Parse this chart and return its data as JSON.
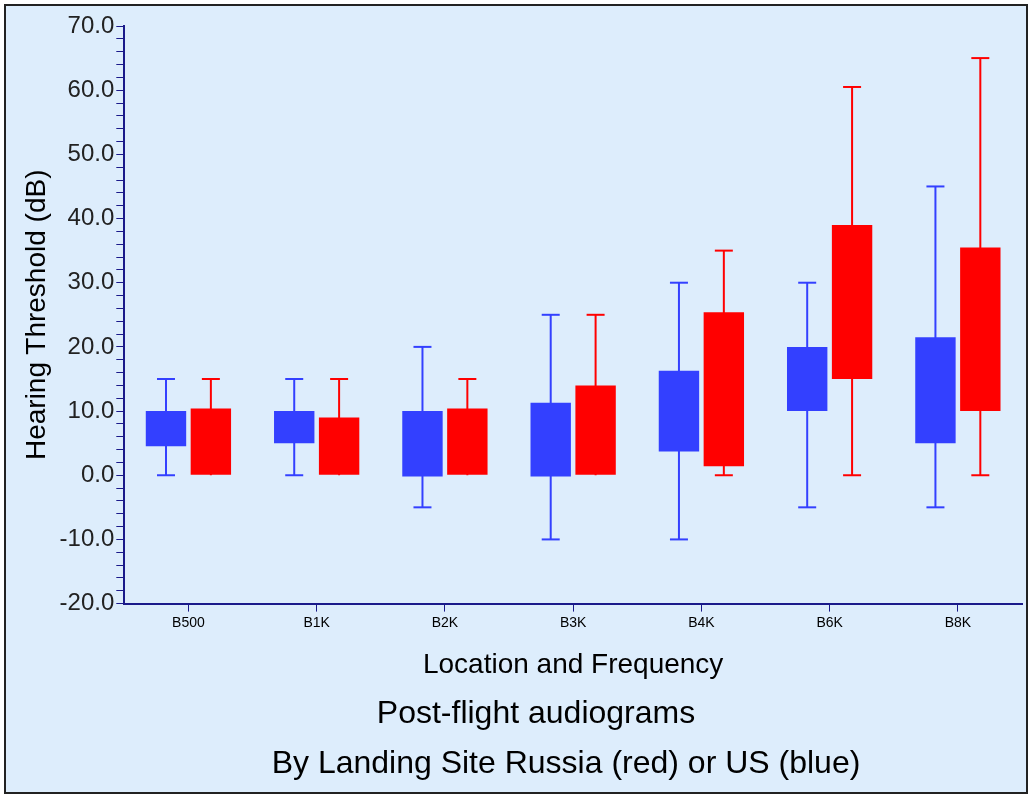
{
  "chart_data": {
    "type": "bar",
    "title": "Post-flight audiograms",
    "subtitle": "By Landing Site Russia (red) or US (blue)",
    "xlabel": "Location and Frequency",
    "ylabel": "Hearing Threshold (dB)",
    "categories": [
      "B500",
      "B1K",
      "B2K",
      "B3K",
      "B4K",
      "B6K",
      "B8K"
    ],
    "series": [
      {
        "color": "#3340ff",
        "base": [
          4.5,
          5,
          -0.2,
          -0.2,
          3.7,
          10,
          5
        ],
        "values": [
          5.5,
          5,
          10.2,
          11.5,
          12.6,
          10,
          16.5
        ],
        "errors": [
          [
            0,
            15
          ],
          [
            0,
            15
          ],
          [
            -5,
            20
          ],
          [
            -10,
            25
          ],
          [
            -10,
            30
          ],
          [
            -5,
            30
          ],
          [
            -5,
            45
          ]
        ]
      },
      {
        "color": "#ff0000",
        "base": [
          0,
          0,
          0,
          0,
          1.4,
          15,
          10
        ],
        "values": [
          10.4,
          9,
          10.4,
          14,
          24,
          24,
          25.5
        ],
        "errors": [
          [
            0,
            15
          ],
          [
            0,
            15
          ],
          [
            0,
            15
          ],
          [
            0,
            25
          ],
          [
            0,
            35
          ],
          [
            0,
            60.5
          ],
          [
            0,
            65
          ]
        ]
      }
    ],
    "ylim": [
      -20,
      70
    ],
    "yticks": [
      {
        "value": -20,
        "label": "-20.0"
      },
      {
        "value": -18,
        "label": null
      },
      {
        "value": -16,
        "label": null
      },
      {
        "value": -14,
        "label": null
      },
      {
        "value": -12,
        "label": null
      },
      {
        "value": -10,
        "label": "-10.0"
      },
      {
        "value": -8,
        "label": null
      },
      {
        "value": -6,
        "label": null
      },
      {
        "value": -4,
        "label": null
      },
      {
        "value": -2,
        "label": null
      },
      {
        "value": 0,
        "label": "0.0"
      },
      {
        "value": 2,
        "label": null
      },
      {
        "value": 4,
        "label": null
      },
      {
        "value": 6,
        "label": null
      },
      {
        "value": 8,
        "label": null
      },
      {
        "value": 10,
        "label": "10.0"
      },
      {
        "value": 12,
        "label": null
      },
      {
        "value": 14,
        "label": null
      },
      {
        "value": 16,
        "label": null
      },
      {
        "value": 18,
        "label": null
      },
      {
        "value": 20,
        "label": "20.0"
      },
      {
        "value": 22,
        "label": null
      },
      {
        "value": 24,
        "label": null
      },
      {
        "value": 26,
        "label": null
      },
      {
        "value": 28,
        "label": null
      },
      {
        "value": 30,
        "label": "30.0"
      },
      {
        "value": 32,
        "label": null
      },
      {
        "value": 34,
        "label": null
      },
      {
        "value": 36,
        "label": null
      },
      {
        "value": 38,
        "label": null
      },
      {
        "value": 40,
        "label": "40.0"
      },
      {
        "value": 42,
        "label": null
      },
      {
        "value": 44,
        "label": null
      },
      {
        "value": 46,
        "label": null
      },
      {
        "value": 48,
        "label": null
      },
      {
        "value": 50,
        "label": "50.0"
      },
      {
        "value": 52,
        "label": null
      },
      {
        "value": 54,
        "label": null
      },
      {
        "value": 56,
        "label": null
      },
      {
        "value": 58,
        "label": null
      },
      {
        "value": 60,
        "label": "60.0"
      },
      {
        "value": 62,
        "label": null
      },
      {
        "value": 64,
        "label": null
      },
      {
        "value": 66,
        "label": null
      },
      {
        "value": 68,
        "label": null
      },
      {
        "value": 70,
        "label": "70.0"
      }
    ],
    "grid": false,
    "legend": false
  }
}
